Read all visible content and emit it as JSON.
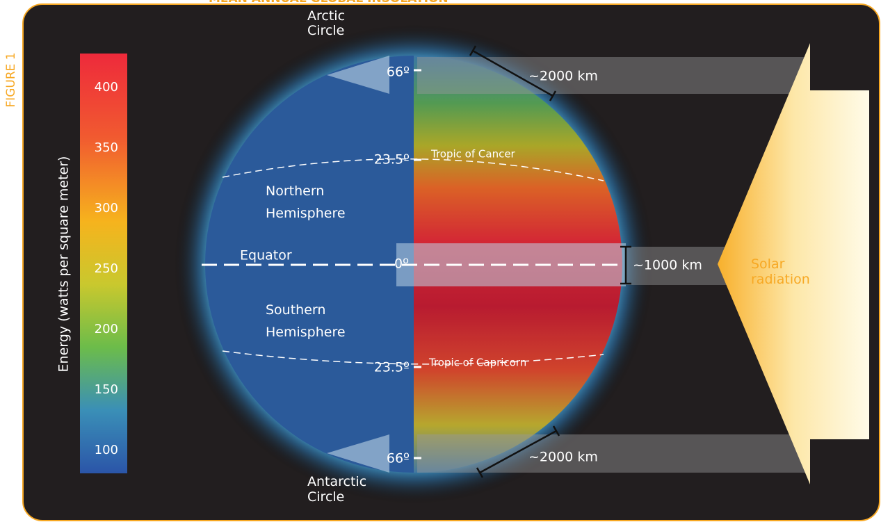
{
  "header": {
    "title": "MEAN ANNUAL GLOBAL INSOLATION",
    "figure": "FIGURE 1"
  },
  "colorbar": {
    "label": "Energy (watts per square meter)",
    "ticks": [
      "400",
      "350",
      "300",
      "250",
      "200",
      "150",
      "100"
    ]
  },
  "labels": {
    "arctic": "Arctic Circle",
    "arctic_deg": "66º",
    "top_width": "~2000 km",
    "cancer_deg": "23.5º",
    "cancer": "Tropic of Cancer",
    "north": "Northern Hemisphere",
    "equator": "Equator",
    "equator_deg": "0º",
    "mid_width": "~1000 km",
    "south": "Southern Hemisphere",
    "capricorn_deg": "23.5º",
    "capricorn": "Tropic of Capricorn",
    "antarctic_deg": "66º",
    "bottom_width": "~2000 km",
    "antarctic": "Antarctic Circle",
    "solar": "Solar radiation"
  }
}
